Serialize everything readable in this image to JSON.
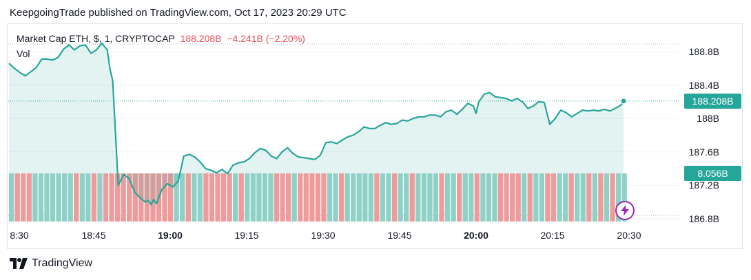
{
  "attribution": "KeepgoingTrade published on TradingView.com, Oct 17, 2023 20:29 UTC",
  "legend": {
    "symbol": "Market Cap ETH, $, 1, CRYPTOCAP",
    "last": "188.208B",
    "change": "−4.241B (−2.20%)",
    "volume_label": "Vol"
  },
  "tags": {
    "price": "188.208B",
    "volume": "8.056B"
  },
  "brand": "TradingView",
  "colors": {
    "line": "#26a69a",
    "up_volume": "#8fd1c7",
    "down_volume": "#ee9c9b",
    "negative_text": "#e84d57",
    "event_icon": "#9c27b0"
  },
  "icons": [
    "tradingview-logo-icon",
    "lightning-icon"
  ],
  "chart_data": {
    "type": "area",
    "title": "Market Cap ETH, $, 1, CRYPTOCAP",
    "xlabel": "",
    "ylabel": "",
    "x_ticks": [
      "8:30",
      "18:45",
      "19:00",
      "19:15",
      "19:30",
      "19:45",
      "20:00",
      "20:15",
      "20:30"
    ],
    "bold_x_ticks": [
      "19:00",
      "20:00"
    ],
    "y_ticks": [
      "186.8B",
      "187.2B",
      "187.6B",
      "188B",
      "188.4B",
      "188.8B"
    ],
    "ylim": [
      186.75,
      189.0
    ],
    "unit": "B USD",
    "last_value": 188.208,
    "grid": true,
    "series": [
      {
        "name": "Market Cap ETH",
        "points": [
          [
            0,
            188.66
          ],
          [
            2,
            188.6
          ],
          [
            4,
            188.55
          ],
          [
            6,
            188.51
          ],
          [
            8,
            188.56
          ],
          [
            10,
            188.61
          ],
          [
            12,
            188.71
          ],
          [
            14,
            188.71
          ],
          [
            16,
            188.7
          ],
          [
            18,
            188.73
          ],
          [
            20,
            188.83
          ],
          [
            22,
            188.88
          ],
          [
            24,
            188.82
          ],
          [
            26,
            188.87
          ],
          [
            28,
            188.88
          ],
          [
            30,
            188.78
          ],
          [
            32,
            188.82
          ],
          [
            34,
            188.9
          ],
          [
            36,
            188.82
          ],
          [
            37,
            188.59
          ],
          [
            38,
            188.45
          ],
          [
            40,
            187.2
          ],
          [
            42,
            187.33
          ],
          [
            44,
            187.28
          ],
          [
            46,
            187.12
          ],
          [
            48,
            187.05
          ],
          [
            50,
            187.0
          ],
          [
            51,
            187.02
          ],
          [
            52,
            186.97
          ],
          [
            53,
            187.03
          ],
          [
            54,
            186.98
          ],
          [
            56,
            187.15
          ],
          [
            58,
            187.22
          ],
          [
            60,
            187.18
          ],
          [
            62,
            187.25
          ],
          [
            64,
            187.55
          ],
          [
            66,
            187.57
          ],
          [
            68,
            187.54
          ],
          [
            70,
            187.48
          ],
          [
            72,
            187.4
          ],
          [
            74,
            187.38
          ],
          [
            76,
            187.35
          ],
          [
            78,
            187.39
          ],
          [
            80,
            187.34
          ],
          [
            82,
            187.44
          ],
          [
            84,
            187.47
          ],
          [
            86,
            187.48
          ],
          [
            88,
            187.52
          ],
          [
            90,
            187.59
          ],
          [
            92,
            187.64
          ],
          [
            94,
            187.62
          ],
          [
            96,
            187.55
          ],
          [
            98,
            187.52
          ],
          [
            100,
            187.6
          ],
          [
            102,
            187.65
          ],
          [
            104,
            187.58
          ],
          [
            106,
            187.54
          ],
          [
            108,
            187.53
          ],
          [
            110,
            187.52
          ],
          [
            112,
            187.51
          ],
          [
            114,
            187.56
          ],
          [
            116,
            187.71
          ],
          [
            118,
            187.72
          ],
          [
            120,
            187.7
          ],
          [
            122,
            187.74
          ],
          [
            124,
            187.78
          ],
          [
            126,
            187.8
          ],
          [
            128,
            187.84
          ],
          [
            130,
            187.9
          ],
          [
            132,
            187.88
          ],
          [
            134,
            187.88
          ],
          [
            136,
            187.92
          ],
          [
            138,
            187.95
          ],
          [
            140,
            187.93
          ],
          [
            142,
            187.94
          ],
          [
            144,
            187.98
          ],
          [
            146,
            187.97
          ],
          [
            148,
            188.0
          ],
          [
            150,
            188.02
          ],
          [
            152,
            188.02
          ],
          [
            154,
            188.04
          ],
          [
            156,
            188.04
          ],
          [
            158,
            188.02
          ],
          [
            160,
            188.08
          ],
          [
            162,
            188.1
          ],
          [
            164,
            188.05
          ],
          [
            166,
            188.11
          ],
          [
            168,
            188.18
          ],
          [
            170,
            188.15
          ],
          [
            171,
            188.06
          ],
          [
            172,
            188.2
          ],
          [
            174,
            188.29
          ],
          [
            176,
            188.31
          ],
          [
            178,
            188.26
          ],
          [
            180,
            188.25
          ],
          [
            182,
            188.24
          ],
          [
            184,
            188.21
          ],
          [
            186,
            188.24
          ],
          [
            188,
            188.2
          ],
          [
            190,
            188.12
          ],
          [
            192,
            188.15
          ],
          [
            194,
            188.2
          ],
          [
            196,
            188.19
          ],
          [
            198,
            187.93
          ],
          [
            200,
            188.0
          ],
          [
            202,
            188.1
          ],
          [
            204,
            188.07
          ],
          [
            206,
            188.02
          ],
          [
            208,
            188.06
          ],
          [
            210,
            188.1
          ],
          [
            212,
            188.09
          ],
          [
            214,
            188.1
          ],
          [
            216,
            188.09
          ],
          [
            218,
            188.11
          ],
          [
            220,
            188.09
          ],
          [
            222,
            188.12
          ],
          [
            224,
            188.16
          ],
          [
            225,
            188.208
          ]
        ]
      }
    ]
  }
}
